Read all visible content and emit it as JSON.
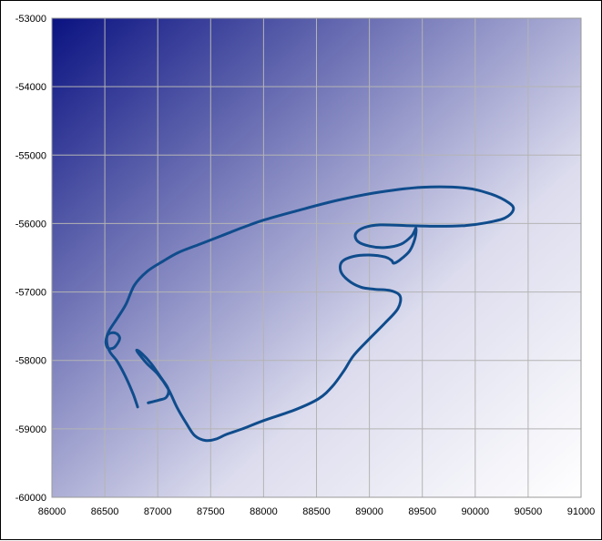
{
  "chart_data": {
    "type": "line",
    "title": "",
    "xlabel": "",
    "ylabel": "",
    "xlim": [
      86000,
      91000
    ],
    "ylim": [
      -60000,
      -53000
    ],
    "grid": true,
    "x_ticks": [
      "86000",
      "86500",
      "87000",
      "87500",
      "88000",
      "88500",
      "89000",
      "89500",
      "90000",
      "90500",
      "91000"
    ],
    "y_ticks": [
      "-53000",
      "-54000",
      "-55000",
      "-56000",
      "-57000",
      "-58000",
      "-59000",
      "-60000"
    ],
    "background_gradient": {
      "top_left": "#0a1281",
      "bottom_right": "#ffffff"
    },
    "series": [
      {
        "color": "#0f4c8c",
        "points": [
          [
            86810,
            -58680
          ],
          [
            86770,
            -58500
          ],
          [
            86700,
            -58250
          ],
          [
            86620,
            -58020
          ],
          [
            86550,
            -57880
          ],
          [
            86520,
            -57750
          ],
          [
            86530,
            -57620
          ],
          [
            86600,
            -57600
          ],
          [
            86640,
            -57680
          ],
          [
            86590,
            -57810
          ],
          [
            86530,
            -57820
          ],
          [
            86510,
            -57720
          ],
          [
            86540,
            -57570
          ],
          [
            86620,
            -57380
          ],
          [
            86700,
            -57180
          ],
          [
            86780,
            -56900
          ],
          [
            86900,
            -56700
          ],
          [
            87050,
            -56550
          ],
          [
            87200,
            -56420
          ],
          [
            87400,
            -56300
          ],
          [
            87600,
            -56180
          ],
          [
            87800,
            -56060
          ],
          [
            88000,
            -55950
          ],
          [
            88300,
            -55820
          ],
          [
            88700,
            -55660
          ],
          [
            89100,
            -55540
          ],
          [
            89500,
            -55470
          ],
          [
            89900,
            -55480
          ],
          [
            90150,
            -55570
          ],
          [
            90320,
            -55700
          ],
          [
            90360,
            -55800
          ],
          [
            90280,
            -55920
          ],
          [
            90100,
            -55990
          ],
          [
            89900,
            -56030
          ],
          [
            89650,
            -56040
          ],
          [
            89350,
            -56030
          ],
          [
            89100,
            -56020
          ],
          [
            88950,
            -56060
          ],
          [
            88870,
            -56150
          ],
          [
            88890,
            -56260
          ],
          [
            89000,
            -56330
          ],
          [
            89150,
            -56350
          ],
          [
            89300,
            -56300
          ],
          [
            89400,
            -56180
          ],
          [
            89440,
            -56070
          ],
          [
            89430,
            -56220
          ],
          [
            89380,
            -56400
          ],
          [
            89290,
            -56530
          ],
          [
            89230,
            -56580
          ],
          [
            89210,
            -56540
          ],
          [
            89150,
            -56490
          ],
          [
            89000,
            -56460
          ],
          [
            88850,
            -56480
          ],
          [
            88740,
            -56560
          ],
          [
            88730,
            -56700
          ],
          [
            88800,
            -56830
          ],
          [
            88920,
            -56930
          ],
          [
            89050,
            -56960
          ],
          [
            89200,
            -56980
          ],
          [
            89290,
            -57060
          ],
          [
            89270,
            -57240
          ],
          [
            89150,
            -57450
          ],
          [
            88990,
            -57700
          ],
          [
            88850,
            -57930
          ],
          [
            88760,
            -58150
          ],
          [
            88650,
            -58380
          ],
          [
            88520,
            -58560
          ],
          [
            88300,
            -58720
          ],
          [
            88000,
            -58880
          ],
          [
            87800,
            -59000
          ],
          [
            87650,
            -59080
          ],
          [
            87550,
            -59150
          ],
          [
            87450,
            -59170
          ],
          [
            87350,
            -59100
          ],
          [
            87270,
            -58920
          ],
          [
            87180,
            -58680
          ],
          [
            87100,
            -58420
          ],
          [
            87000,
            -58200
          ],
          [
            86900,
            -58050
          ],
          [
            86830,
            -57920
          ],
          [
            86800,
            -57850
          ],
          [
            86850,
            -57900
          ],
          [
            86940,
            -58050
          ],
          [
            87030,
            -58250
          ],
          [
            87100,
            -58420
          ],
          [
            87080,
            -58540
          ],
          [
            87010,
            -58580
          ],
          [
            86910,
            -58620
          ]
        ]
      }
    ]
  }
}
